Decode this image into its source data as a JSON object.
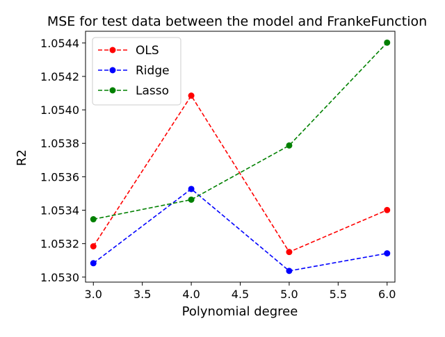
{
  "chart_data": {
    "type": "line",
    "title": "MSE for test data between the model and FrankeFunction",
    "xlabel": "Polynomial degree",
    "ylabel": "R2",
    "xlim": [
      2.92,
      6.08
    ],
    "ylim": [
      1.05297,
      1.05447
    ],
    "x_ticks": [
      3.0,
      3.5,
      4.0,
      4.5,
      5.0,
      5.5,
      6.0
    ],
    "x_tick_labels": [
      "3.0",
      "3.5",
      "4.0",
      "4.5",
      "5.0",
      "5.5",
      "6.0"
    ],
    "y_ticks": [
      1.053,
      1.0532,
      1.0534,
      1.0536,
      1.0538,
      1.054,
      1.0542,
      1.0544
    ],
    "y_tick_labels": [
      "1.0530",
      "1.0532",
      "1.0534",
      "1.0536",
      "1.0538",
      "1.0540",
      "1.0542",
      "1.0544"
    ],
    "grid": false,
    "legend_position": "top-left",
    "x": [
      3.0,
      4.0,
      5.0,
      6.0
    ],
    "series": [
      {
        "name": "OLS",
        "values": [
          1.053184,
          1.054085,
          1.05315,
          1.053401
        ],
        "color": "#ff0000",
        "line_style": "dashed",
        "marker": "circle"
      },
      {
        "name": "Ridge",
        "values": [
          1.053083,
          1.053527,
          1.053037,
          1.053142
        ],
        "color": "#0000ff",
        "line_style": "dashed",
        "marker": "circle"
      },
      {
        "name": "Lasso",
        "values": [
          1.053346,
          1.053463,
          1.053787,
          1.054402
        ],
        "color": "#008000",
        "line_style": "dashed",
        "marker": "circle"
      }
    ]
  }
}
